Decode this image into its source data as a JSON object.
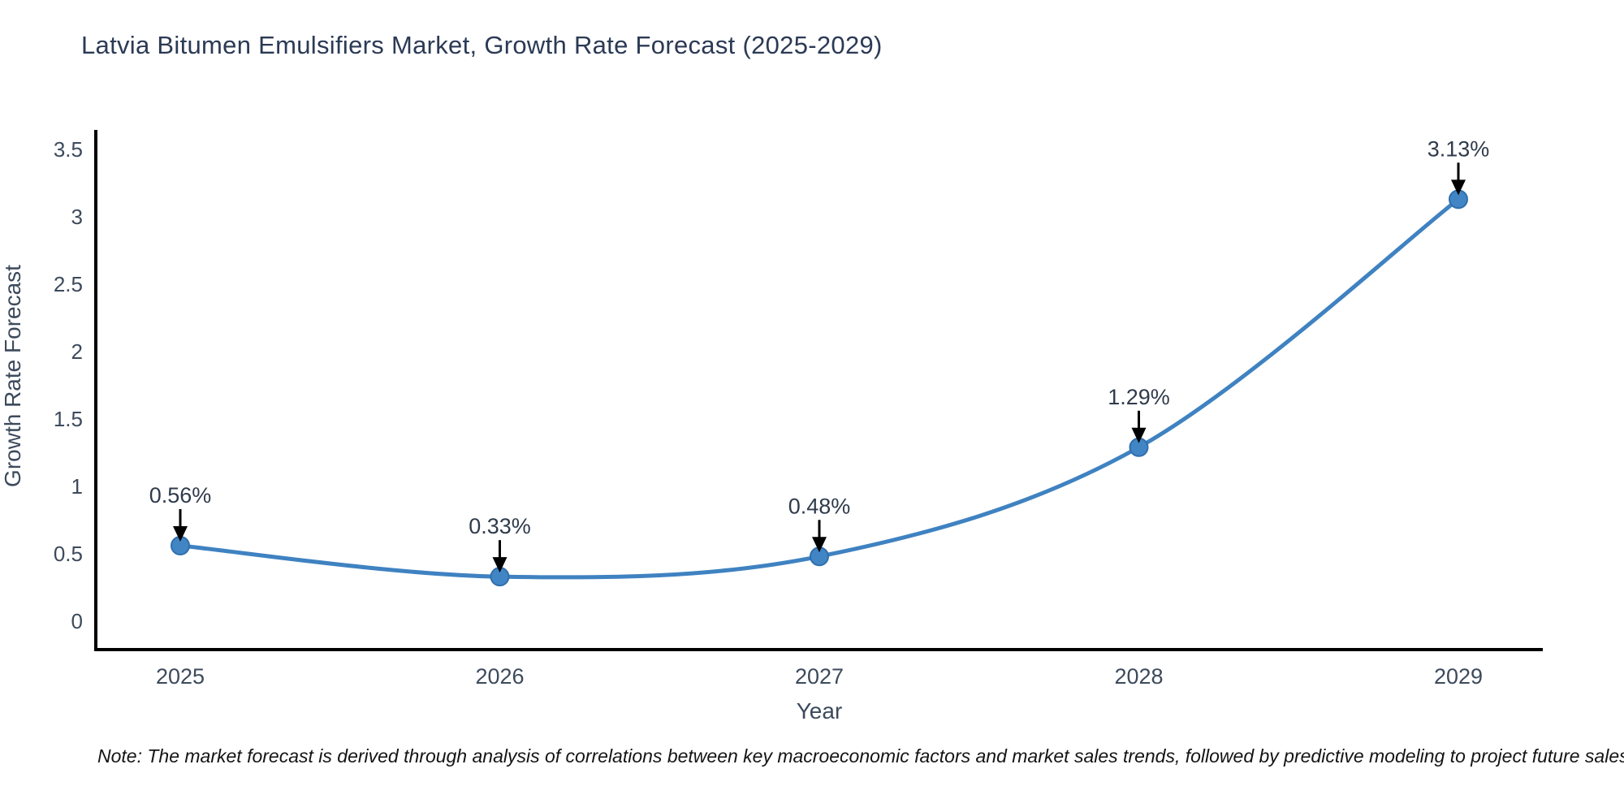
{
  "title": "Latvia Bitumen Emulsifiers Market, Growth Rate Forecast (2025-2029)",
  "note": "Note: The market forecast is derived through analysis of correlations between key macroeconomic factors and market sales trends, followed by predictive modeling to project future sales",
  "chart_data": {
    "type": "line",
    "title": "Latvia Bitumen Emulsifiers Market, Growth Rate Forecast (2025-2029)",
    "xlabel": "Year",
    "ylabel": "Growth Rate Forecast",
    "categories": [
      "2025",
      "2026",
      "2027",
      "2028",
      "2029"
    ],
    "values": [
      0.56,
      0.33,
      0.48,
      1.29,
      3.13
    ],
    "point_labels": [
      "0.56%",
      "0.33%",
      "0.48%",
      "1.29%",
      "3.13%"
    ],
    "y_ticks": [
      0,
      0.5,
      1,
      1.5,
      2,
      2.5,
      3,
      3.5
    ],
    "ylim": [
      -0.211,
      3.644
    ],
    "grid": false,
    "legend_position": "none",
    "curve": "smooth",
    "colors": {
      "line": "#3f82c1",
      "marker_fill": "#4285c4",
      "marker_edge": "#2f6fae",
      "axis": "#000000",
      "annotation_arrow": "#000000"
    }
  }
}
